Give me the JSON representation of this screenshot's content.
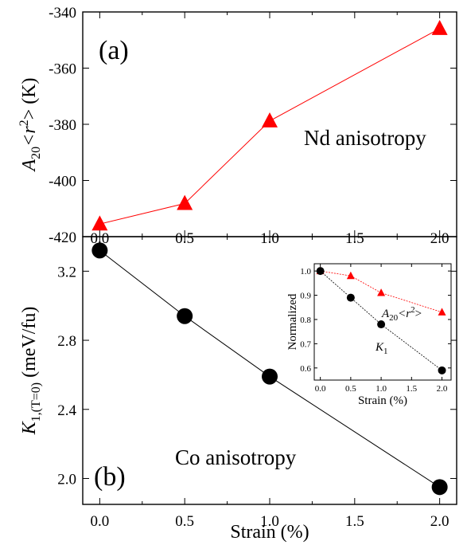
{
  "chart_data": [
    {
      "type": "line",
      "panel": "(a)",
      "annotation": "Nd anisotropy",
      "ylabel_prefix": "A",
      "ylabel_sub": "20",
      "ylabel_mid": "<r",
      "ylabel_sup": "2",
      "ylabel_suffix": "> (K)",
      "xlim": [
        -0.1,
        2.1
      ],
      "ylim": [
        -420,
        -340
      ],
      "x_ticks": [
        "0.0",
        "0.5",
        "1.0",
        "1.5",
        "2.0"
      ],
      "y_ticks": [
        "-340",
        "-360",
        "-380",
        "-400",
        "-420"
      ],
      "series": [
        {
          "x": [
            0.0,
            0.5,
            1.0,
            2.0
          ],
          "y": [
            -415.5,
            -408.2,
            -378.8,
            -345.9
          ],
          "marker": "triangle",
          "color": "#ff0000"
        }
      ]
    },
    {
      "type": "line",
      "panel": "(b)",
      "annotation": "Co anisotropy",
      "xlabel": "Strain (%)",
      "ylabel_prefix": "K",
      "ylabel_sub": "1,(T=0)",
      "ylabel_suffix": "(meV/fu)",
      "xlim": [
        -0.1,
        2.1
      ],
      "ylim": [
        1.85,
        3.4
      ],
      "x_ticks": [
        "0.0",
        "0.5",
        "1.0",
        "1.5",
        "2.0"
      ],
      "y_ticks": [
        "3.2",
        "2.8",
        "2.4",
        "2.0"
      ],
      "series": [
        {
          "x": [
            0.0,
            0.5,
            1.0,
            2.0
          ],
          "y": [
            3.32,
            2.94,
            2.59,
            1.95
          ],
          "marker": "circle",
          "color": "#000000"
        }
      ],
      "inset": {
        "xlabel": "Strain (%)",
        "ylabel": "Normalized",
        "xlim": [
          -0.1,
          2.15
        ],
        "ylim": [
          0.55,
          1.03
        ],
        "x_ticks": [
          "0.0",
          "0.5",
          "1.0",
          "1.5",
          "2.0"
        ],
        "y_ticks": [
          "1.0",
          "0.9",
          "0.8",
          "0.7",
          "0.6"
        ],
        "label_A_prefix": "A",
        "label_A_sub": "20",
        "label_A_mid": "<r",
        "label_A_sup": "2",
        "label_A_suffix": ">",
        "label_K": "K",
        "label_K_sub": "1",
        "series": [
          {
            "x": [
              0.0,
              0.5,
              1.0,
              2.0
            ],
            "y": [
              1.0,
              0.98,
              0.91,
              0.83
            ],
            "marker": "triangle",
            "color": "#ff0000"
          },
          {
            "x": [
              0.0,
              0.5,
              1.0,
              2.0
            ],
            "y": [
              1.0,
              0.89,
              0.78,
              0.59
            ],
            "marker": "circle",
            "color": "#000000"
          }
        ]
      }
    }
  ]
}
